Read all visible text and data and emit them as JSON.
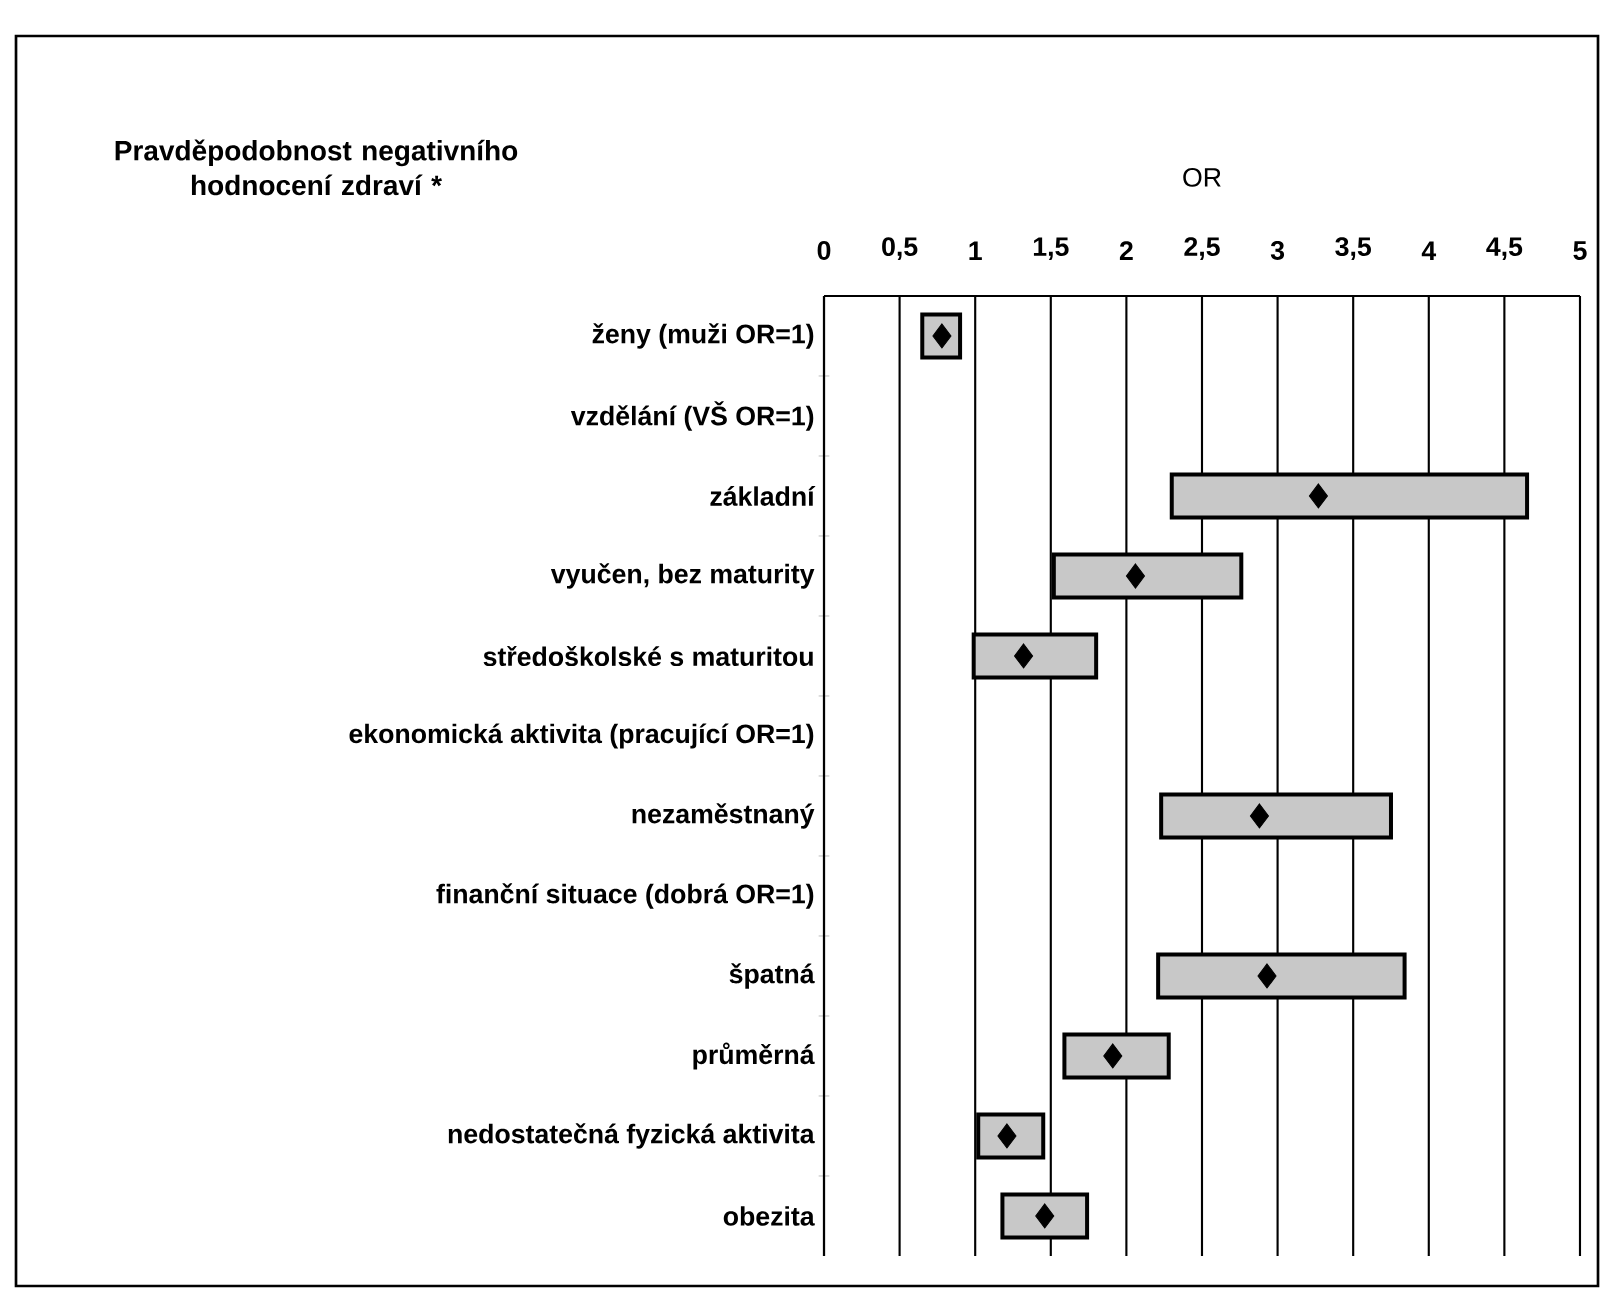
{
  "chart_data": {
    "type": "bar",
    "orientation": "horizontal",
    "title": "Pravděpodobnost negativního hodnocení zdraví *",
    "xlabel": "OR",
    "categories": [
      "ženy  (muži OR=1)",
      "vzdělání (VŠ OR=1)",
      "základní",
      "vyučen, bez maturity",
      "středoškolské s maturitou",
      "ekonomická aktivita (pracující OR=1)",
      "nezaměstnaný",
      "finanční situace (dobrá OR=1)",
      "špatná",
      "průměrná",
      "nedostatečná fyzická aktivita",
      "obezita"
    ],
    "series": [
      {
        "color": "#c8c8c8",
        "base": [
          0.65,
          null,
          2.3,
          1.52,
          0.99,
          null,
          2.23,
          null,
          2.21,
          1.59,
          1.02,
          1.18
        ],
        "values": [
          0.25,
          null,
          2.35,
          1.24,
          0.81,
          null,
          1.52,
          null,
          1.63,
          0.69,
          0.43,
          0.56
        ]
      },
      {
        "type": "scatter",
        "color": "#000000",
        "marker": "diamond",
        "values": [
          0.78,
          null,
          3.27,
          2.06,
          1.32,
          null,
          2.88,
          null,
          2.93,
          1.91,
          1.21,
          1.46
        ]
      }
    ],
    "xlim": [
      0,
      5
    ],
    "xticks": [
      0,
      {
        "value": 0.5,
        "label": "0,5"
      },
      1,
      {
        "value": 1.5,
        "label": "1,5"
      },
      2,
      {
        "value": 2.5,
        "label": "2,5"
      },
      3,
      {
        "value": 3.5,
        "label": "3,5"
      },
      4,
      {
        "value": 4.5,
        "label": "4,5"
      },
      5
    ],
    "grid": "x"
  }
}
